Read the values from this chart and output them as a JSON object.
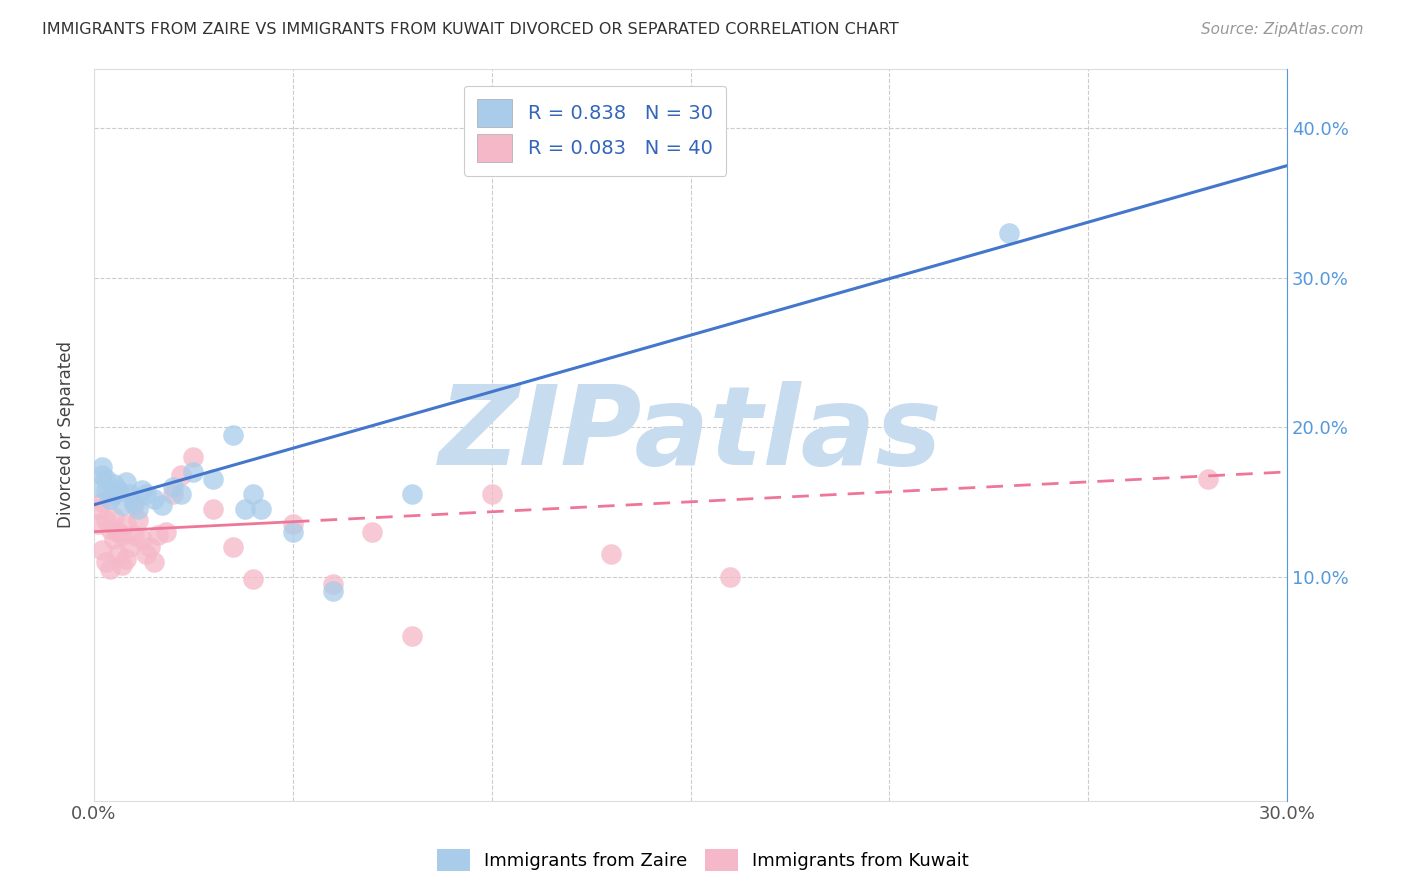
{
  "title": "IMMIGRANTS FROM ZAIRE VS IMMIGRANTS FROM KUWAIT DIVORCED OR SEPARATED CORRELATION CHART",
  "source": "Source: ZipAtlas.com",
  "ylabel": "Divorced or Separated",
  "xlim": [
    0.0,
    0.3
  ],
  "ylim": [
    -0.05,
    0.44
  ],
  "xtick_positions": [
    0.0,
    0.05,
    0.1,
    0.15,
    0.2,
    0.25,
    0.3
  ],
  "xtick_labels": [
    "0.0%",
    "",
    "",
    "",
    "",
    "",
    "30.0%"
  ],
  "ytick_positions": [
    0.1,
    0.2,
    0.3,
    0.4
  ],
  "ytick_right_labels": [
    "10.0%",
    "20.0%",
    "30.0%",
    "40.0%"
  ],
  "blue_color": "#A8CCEA",
  "pink_color": "#F5B8C8",
  "blue_line_color": "#4477CC",
  "pink_line_color": "#EE7799",
  "watermark_color": "#C8DCF0",
  "watermark_text": "ZIPatlas",
  "legend_R_blue": "R = 0.838",
  "legend_N_blue": "N = 30",
  "legend_R_pink": "R = 0.083",
  "legend_N_pink": "N = 40",
  "legend_label_blue": "Immigrants from Zaire",
  "legend_label_pink": "Immigrants from Kuwait",
  "blue_line_x0": 0.0,
  "blue_line_y0": 0.148,
  "blue_line_x1": 0.3,
  "blue_line_y1": 0.375,
  "pink_line_x0": 0.0,
  "pink_line_y0": 0.13,
  "pink_line_x1": 0.3,
  "pink_line_y1": 0.17,
  "zaire_x": [
    0.001,
    0.002,
    0.002,
    0.003,
    0.003,
    0.004,
    0.005,
    0.005,
    0.006,
    0.007,
    0.008,
    0.009,
    0.01,
    0.011,
    0.012,
    0.013,
    0.015,
    0.017,
    0.02,
    0.022,
    0.025,
    0.03,
    0.035,
    0.038,
    0.04,
    0.042,
    0.05,
    0.06,
    0.08,
    0.23
  ],
  "zaire_y": [
    0.16,
    0.168,
    0.173,
    0.158,
    0.165,
    0.152,
    0.162,
    0.155,
    0.158,
    0.148,
    0.163,
    0.155,
    0.15,
    0.145,
    0.158,
    0.155,
    0.152,
    0.148,
    0.16,
    0.155,
    0.17,
    0.165,
    0.195,
    0.145,
    0.155,
    0.145,
    0.13,
    0.09,
    0.155,
    0.33
  ],
  "kuwait_x": [
    0.001,
    0.001,
    0.002,
    0.002,
    0.003,
    0.003,
    0.004,
    0.004,
    0.005,
    0.005,
    0.006,
    0.006,
    0.007,
    0.007,
    0.008,
    0.008,
    0.009,
    0.01,
    0.01,
    0.011,
    0.012,
    0.013,
    0.014,
    0.015,
    0.016,
    0.018,
    0.02,
    0.022,
    0.025,
    0.03,
    0.035,
    0.04,
    0.05,
    0.06,
    0.07,
    0.08,
    0.1,
    0.13,
    0.16,
    0.28
  ],
  "kuwait_y": [
    0.145,
    0.135,
    0.15,
    0.118,
    0.138,
    0.11,
    0.132,
    0.105,
    0.14,
    0.125,
    0.13,
    0.115,
    0.128,
    0.108,
    0.135,
    0.112,
    0.12,
    0.148,
    0.128,
    0.138,
    0.125,
    0.115,
    0.12,
    0.11,
    0.128,
    0.13,
    0.155,
    0.168,
    0.18,
    0.145,
    0.12,
    0.098,
    0.135,
    0.095,
    0.13,
    0.06,
    0.155,
    0.115,
    0.1,
    0.165
  ]
}
